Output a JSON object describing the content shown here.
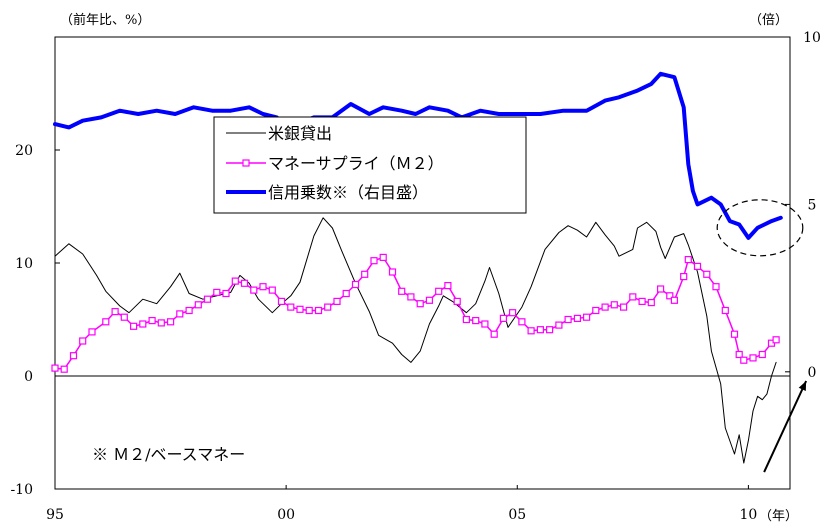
{
  "chart_data": {
    "type": "line",
    "left_axis_label": "（前年比、%）",
    "right_axis_label": "（倍）",
    "x_unit_label": "（年）",
    "note": "※ Ｍ２/ベースマネー",
    "x_ticks": [
      {
        "value": 1995,
        "label": "95"
      },
      {
        "value": 2000,
        "label": "00"
      },
      {
        "value": 2005,
        "label": "05"
      },
      {
        "value": 2010,
        "label": "10"
      }
    ],
    "xlim": [
      1995,
      2010.9
    ],
    "ylim_left": [
      -10,
      30
    ],
    "yticks_left": [
      -10,
      0,
      10,
      20
    ],
    "ylim_right": [
      -3.5,
      10
    ],
    "yticks_right": [
      0,
      5,
      10
    ],
    "legend": {
      "position": "upper-left-inside"
    },
    "series": [
      {
        "name": "米銀貸出",
        "axis": "left",
        "color": "#000000",
        "style": "thin-line",
        "points": [
          [
            1995.0,
            10.6
          ],
          [
            1995.3,
            11.7
          ],
          [
            1995.6,
            10.8
          ],
          [
            1995.9,
            8.9
          ],
          [
            1996.1,
            7.5
          ],
          [
            1996.4,
            6.2
          ],
          [
            1996.6,
            5.6
          ],
          [
            1996.9,
            6.8
          ],
          [
            1997.2,
            6.4
          ],
          [
            1997.5,
            7.9
          ],
          [
            1997.7,
            9.1
          ],
          [
            1997.9,
            7.3
          ],
          [
            1998.2,
            6.8
          ],
          [
            1998.5,
            7.1
          ],
          [
            1998.8,
            7.4
          ],
          [
            1999.0,
            8.9
          ],
          [
            1999.2,
            8.2
          ],
          [
            1999.4,
            6.8
          ],
          [
            1999.7,
            5.6
          ],
          [
            1999.9,
            6.4
          ],
          [
            2000.1,
            7.1
          ],
          [
            2000.3,
            8.3
          ],
          [
            2000.6,
            12.4
          ],
          [
            2000.8,
            14.0
          ],
          [
            2001.0,
            13.1
          ],
          [
            2001.2,
            11.1
          ],
          [
            2001.5,
            8.2
          ],
          [
            2001.8,
            5.7
          ],
          [
            2002.0,
            3.6
          ],
          [
            2002.3,
            2.9
          ],
          [
            2002.5,
            1.9
          ],
          [
            2002.7,
            1.2
          ],
          [
            2002.9,
            2.2
          ],
          [
            2003.1,
            4.6
          ],
          [
            2003.3,
            6.2
          ],
          [
            2003.4,
            7.1
          ],
          [
            2003.6,
            6.6
          ],
          [
            2003.9,
            5.6
          ],
          [
            2004.1,
            6.4
          ],
          [
            2004.3,
            8.4
          ],
          [
            2004.4,
            9.6
          ],
          [
            2004.6,
            7.3
          ],
          [
            2004.8,
            4.3
          ],
          [
            2005.1,
            6.1
          ],
          [
            2005.3,
            7.9
          ],
          [
            2005.6,
            11.2
          ],
          [
            2005.9,
            12.7
          ],
          [
            2006.1,
            13.3
          ],
          [
            2006.3,
            12.9
          ],
          [
            2006.5,
            12.3
          ],
          [
            2006.7,
            13.6
          ],
          [
            2006.9,
            12.5
          ],
          [
            2007.1,
            11.5
          ],
          [
            2007.2,
            10.6
          ],
          [
            2007.5,
            11.2
          ],
          [
            2007.6,
            13.1
          ],
          [
            2007.8,
            13.6
          ],
          [
            2008.0,
            12.8
          ],
          [
            2008.1,
            11.4
          ],
          [
            2008.2,
            10.4
          ],
          [
            2008.4,
            12.3
          ],
          [
            2008.6,
            12.6
          ],
          [
            2008.7,
            11.6
          ],
          [
            2008.9,
            9.2
          ],
          [
            2009.1,
            5.3
          ],
          [
            2009.2,
            2.2
          ],
          [
            2009.4,
            -0.7
          ],
          [
            2009.5,
            -4.6
          ],
          [
            2009.7,
            -6.9
          ],
          [
            2009.8,
            -5.2
          ],
          [
            2009.9,
            -7.7
          ],
          [
            2010.0,
            -5.7
          ],
          [
            2010.1,
            -3.1
          ],
          [
            2010.2,
            -1.8
          ],
          [
            2010.3,
            -2.1
          ],
          [
            2010.4,
            -1.6
          ],
          [
            2010.5,
            0.0
          ],
          [
            2010.6,
            1.2
          ]
        ]
      },
      {
        "name": "マネーサプライ（Ｍ２）",
        "axis": "left",
        "color": "#ff00ff",
        "style": "line-with-square-markers",
        "points": [
          [
            1995.0,
            0.7
          ],
          [
            1995.2,
            0.6
          ],
          [
            1995.4,
            1.8
          ],
          [
            1995.6,
            3.1
          ],
          [
            1995.8,
            3.9
          ],
          [
            1996.1,
            4.8
          ],
          [
            1996.3,
            5.7
          ],
          [
            1996.5,
            5.2
          ],
          [
            1996.7,
            4.4
          ],
          [
            1996.9,
            4.6
          ],
          [
            1997.1,
            4.9
          ],
          [
            1997.3,
            4.7
          ],
          [
            1997.5,
            4.8
          ],
          [
            1997.7,
            5.5
          ],
          [
            1997.9,
            5.8
          ],
          [
            1998.1,
            6.3
          ],
          [
            1998.3,
            6.8
          ],
          [
            1998.5,
            7.4
          ],
          [
            1998.7,
            7.3
          ],
          [
            1998.9,
            8.4
          ],
          [
            1999.1,
            8.2
          ],
          [
            1999.3,
            7.6
          ],
          [
            1999.5,
            7.9
          ],
          [
            1999.7,
            7.6
          ],
          [
            1999.9,
            6.6
          ],
          [
            2000.1,
            6.1
          ],
          [
            2000.3,
            5.9
          ],
          [
            2000.5,
            5.8
          ],
          [
            2000.7,
            5.8
          ],
          [
            2000.9,
            6.1
          ],
          [
            2001.1,
            6.6
          ],
          [
            2001.3,
            7.3
          ],
          [
            2001.5,
            8.1
          ],
          [
            2001.7,
            9.0
          ],
          [
            2001.9,
            10.2
          ],
          [
            2002.1,
            10.5
          ],
          [
            2002.3,
            9.2
          ],
          [
            2002.5,
            7.5
          ],
          [
            2002.7,
            7.0
          ],
          [
            2002.9,
            6.4
          ],
          [
            2003.1,
            6.7
          ],
          [
            2003.3,
            7.5
          ],
          [
            2003.5,
            8.0
          ],
          [
            2003.7,
            6.6
          ],
          [
            2003.9,
            5.0
          ],
          [
            2004.1,
            4.9
          ],
          [
            2004.3,
            4.6
          ],
          [
            2004.5,
            3.7
          ],
          [
            2004.7,
            5.1
          ],
          [
            2004.9,
            5.6
          ],
          [
            2005.1,
            4.8
          ],
          [
            2005.3,
            4.0
          ],
          [
            2005.5,
            4.1
          ],
          [
            2005.7,
            4.1
          ],
          [
            2005.9,
            4.5
          ],
          [
            2006.1,
            5.0
          ],
          [
            2006.3,
            5.1
          ],
          [
            2006.5,
            5.2
          ],
          [
            2006.7,
            5.8
          ],
          [
            2006.9,
            6.1
          ],
          [
            2007.1,
            6.3
          ],
          [
            2007.3,
            6.1
          ],
          [
            2007.5,
            7.0
          ],
          [
            2007.7,
            6.6
          ],
          [
            2007.9,
            6.5
          ],
          [
            2008.1,
            7.7
          ],
          [
            2008.3,
            7.1
          ],
          [
            2008.4,
            6.7
          ],
          [
            2008.6,
            8.8
          ],
          [
            2008.7,
            10.3
          ],
          [
            2008.9,
            9.7
          ],
          [
            2009.1,
            9.0
          ],
          [
            2009.3,
            7.9
          ],
          [
            2009.5,
            5.8
          ],
          [
            2009.7,
            3.7
          ],
          [
            2009.8,
            1.9
          ],
          [
            2009.9,
            1.4
          ],
          [
            2010.1,
            1.6
          ],
          [
            2010.3,
            1.9
          ],
          [
            2010.5,
            2.9
          ],
          [
            2010.6,
            3.2
          ]
        ]
      },
      {
        "name": "信用乗数※（右目盛）",
        "axis": "right",
        "color": "#0000ff",
        "style": "thick-line",
        "points": [
          [
            1995.0,
            7.4
          ],
          [
            1995.3,
            7.3
          ],
          [
            1995.6,
            7.5
          ],
          [
            1996.0,
            7.6
          ],
          [
            1996.4,
            7.8
          ],
          [
            1996.8,
            7.7
          ],
          [
            1997.2,
            7.8
          ],
          [
            1997.6,
            7.7
          ],
          [
            1998.0,
            7.9
          ],
          [
            1998.4,
            7.8
          ],
          [
            1998.8,
            7.8
          ],
          [
            1999.2,
            7.9
          ],
          [
            1999.5,
            7.7
          ],
          [
            1999.8,
            7.6
          ],
          [
            2000.0,
            7.0
          ],
          [
            2000.2,
            7.4
          ],
          [
            2000.6,
            7.6
          ],
          [
            2001.0,
            7.6
          ],
          [
            2001.4,
            8.0
          ],
          [
            2001.8,
            7.7
          ],
          [
            2002.1,
            7.9
          ],
          [
            2002.5,
            7.8
          ],
          [
            2002.8,
            7.7
          ],
          [
            2003.1,
            7.9
          ],
          [
            2003.5,
            7.8
          ],
          [
            2003.8,
            7.6
          ],
          [
            2004.2,
            7.8
          ],
          [
            2004.6,
            7.7
          ],
          [
            2005.0,
            7.7
          ],
          [
            2005.5,
            7.7
          ],
          [
            2006.0,
            7.8
          ],
          [
            2006.5,
            7.8
          ],
          [
            2006.9,
            8.1
          ],
          [
            2007.2,
            8.2
          ],
          [
            2007.6,
            8.4
          ],
          [
            2007.9,
            8.6
          ],
          [
            2008.1,
            8.9
          ],
          [
            2008.4,
            8.8
          ],
          [
            2008.6,
            7.9
          ],
          [
            2008.7,
            6.2
          ],
          [
            2008.8,
            5.4
          ],
          [
            2008.9,
            5.0
          ],
          [
            2009.2,
            5.2
          ],
          [
            2009.4,
            5.0
          ],
          [
            2009.6,
            4.5
          ],
          [
            2009.8,
            4.4
          ],
          [
            2010.0,
            4.0
          ],
          [
            2010.2,
            4.3
          ],
          [
            2010.5,
            4.5
          ],
          [
            2010.7,
            4.6
          ]
        ]
      }
    ],
    "annotations": [
      {
        "type": "dashed-ellipse",
        "around": "信用乗数※（右目盛） 2009.7–2010.7"
      },
      {
        "type": "arrow",
        "direction": "up-right",
        "at_x": 2010.6
      }
    ]
  }
}
